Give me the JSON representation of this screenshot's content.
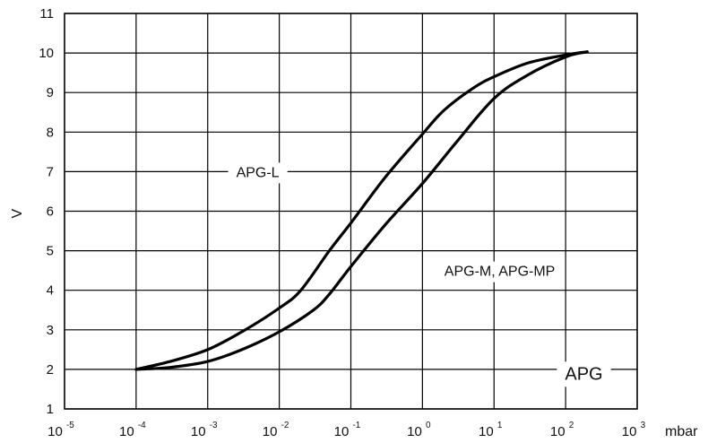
{
  "chart_data": {
    "type": "line",
    "x_scale": "log",
    "xlim": [
      1e-05,
      1000
    ],
    "ylim": [
      1,
      11
    ],
    "x_ticks": [
      {
        "base": "10",
        "exp": "-5"
      },
      {
        "base": "10",
        "exp": "-4"
      },
      {
        "base": "10",
        "exp": "-3"
      },
      {
        "base": "10",
        "exp": "-2"
      },
      {
        "base": "10",
        "exp": "-1"
      },
      {
        "base": "10",
        "exp": "0"
      },
      {
        "base": "10",
        "exp": "1"
      },
      {
        "base": "10",
        "exp": "2"
      },
      {
        "base": "10",
        "exp": "3"
      }
    ],
    "y_ticks": [
      "1",
      "2",
      "3",
      "4",
      "5",
      "6",
      "7",
      "8",
      "9",
      "10",
      "11"
    ],
    "xlabel": "mbar",
    "ylabel": "V",
    "grid": true,
    "series": [
      {
        "name": "APG-L",
        "points": [
          [
            0.0001,
            2.0
          ],
          [
            0.0003,
            2.2
          ],
          [
            0.001,
            2.5
          ],
          [
            0.003,
            2.95
          ],
          [
            0.01,
            3.55
          ],
          [
            0.02,
            4.0
          ],
          [
            0.05,
            5.0
          ],
          [
            0.1,
            5.7
          ],
          [
            0.3,
            6.85
          ],
          [
            1,
            7.95
          ],
          [
            2,
            8.55
          ],
          [
            5,
            9.1
          ],
          [
            10,
            9.4
          ],
          [
            30,
            9.75
          ],
          [
            100,
            9.95
          ],
          [
            200,
            10.03
          ]
        ]
      },
      {
        "name": "APG-M, APG-MP",
        "points": [
          [
            0.0001,
            2.0
          ],
          [
            0.0003,
            2.05
          ],
          [
            0.001,
            2.2
          ],
          [
            0.003,
            2.5
          ],
          [
            0.01,
            2.95
          ],
          [
            0.03,
            3.5
          ],
          [
            0.05,
            3.9
          ],
          [
            0.1,
            4.6
          ],
          [
            0.3,
            5.65
          ],
          [
            1,
            6.7
          ],
          [
            3,
            7.75
          ],
          [
            10,
            8.85
          ],
          [
            30,
            9.45
          ],
          [
            100,
            9.9
          ],
          [
            200,
            10.03
          ]
        ]
      }
    ],
    "annotations": [
      {
        "text": "APG-L",
        "x": 0.005,
        "y": 7.0
      },
      {
        "text": "APG-M, APG-MP",
        "x": 12,
        "y": 4.5
      },
      {
        "text": "APG",
        "x": 180,
        "y": 1.9
      }
    ]
  }
}
